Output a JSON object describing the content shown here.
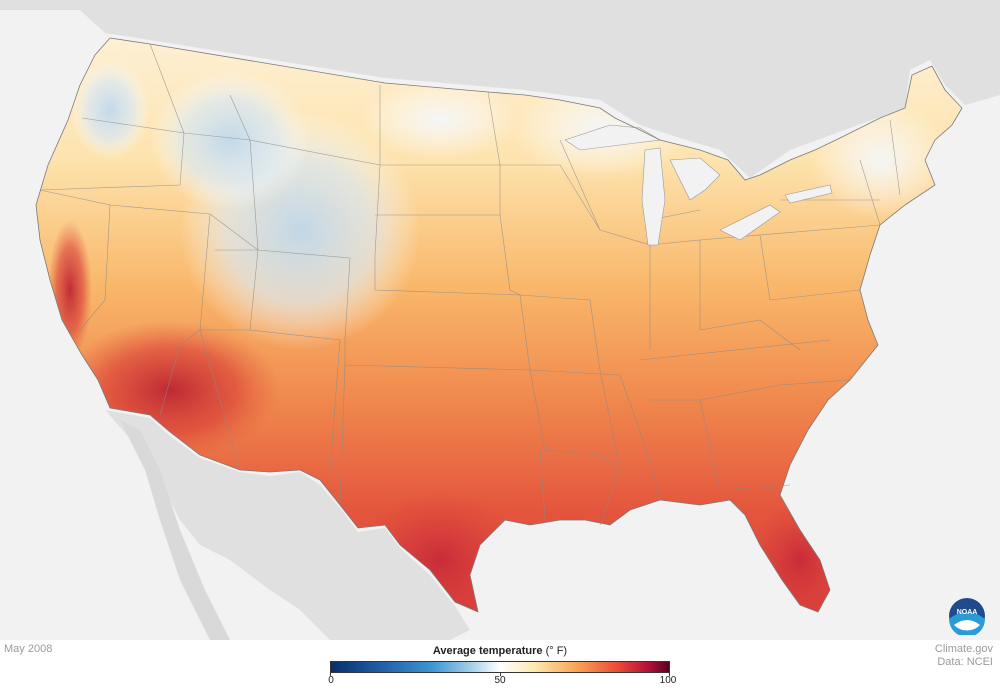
{
  "map": {
    "date": "May 2008",
    "credit_line1": "Climate.gov",
    "credit_line2": "Data: NCEI",
    "logo_text": "NOAA",
    "legend": {
      "title": "Average temperature",
      "unit": "(° F)",
      "min": 0,
      "mid": 50,
      "max": 100,
      "colors": {
        "0": "#08306b",
        "25": "#3d96d3",
        "50": "#ffffff",
        "75": "#f8a95a",
        "90": "#d7303a",
        "100": "#5a0020"
      }
    }
  }
}
